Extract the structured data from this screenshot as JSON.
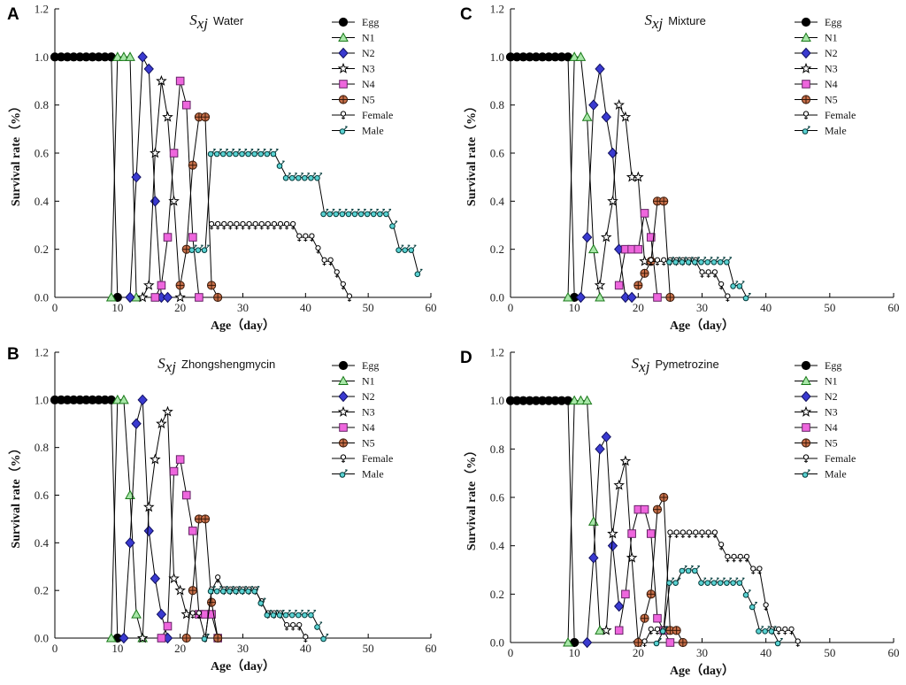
{
  "series_styles": [
    {
      "name": "Egg",
      "marker": "circle",
      "fill": "#000000",
      "stroke": "#000000"
    },
    {
      "name": "N1",
      "marker": "triangle",
      "fill": "#a8e6a8",
      "stroke": "#1a7a1a"
    },
    {
      "name": "N2",
      "marker": "diamond",
      "fill": "#3a3ad0",
      "stroke": "#101060"
    },
    {
      "name": "N3",
      "marker": "star",
      "fill": "#ffffff",
      "stroke": "#000000"
    },
    {
      "name": "N4",
      "marker": "square",
      "fill": "#ee66dd",
      "stroke": "#662266"
    },
    {
      "name": "N5",
      "marker": "crossed-circle",
      "fill": "#c8704a",
      "stroke": "#3a1a0a"
    },
    {
      "name": "Female",
      "marker": "female",
      "fill": "#ffffff",
      "stroke": "#000000"
    },
    {
      "name": "Male",
      "marker": "male",
      "fill": "#5ad2d2",
      "stroke": "#003a3a"
    }
  ],
  "chart_data": [
    {
      "panel_label": "A",
      "type": "line",
      "title_symbol": "S",
      "title_subscript": "xj",
      "title_rest": "Water",
      "xlabel": "Age（day）",
      "ylabel": "Survival rate（%）",
      "xlim": [
        0,
        60
      ],
      "ylim": [
        0,
        1.2
      ],
      "xticks": [
        "0",
        "10",
        "20",
        "30",
        "40",
        "50",
        "60"
      ],
      "yticks": [
        "0.0",
        "0.2",
        "0.4",
        "0.6",
        "0.8",
        "1.0",
        "1.2"
      ],
      "legend": [
        "Egg",
        "N1",
        "N2",
        "N3",
        "N4",
        "N5",
        "Female",
        "Male"
      ],
      "series": [
        {
          "name": "Egg",
          "x": [
            0,
            1,
            2,
            3,
            4,
            5,
            6,
            7,
            8,
            9,
            10
          ],
          "y": [
            1,
            1,
            1,
            1,
            1,
            1,
            1,
            1,
            1,
            1,
            0
          ]
        },
        {
          "name": "N1",
          "x": [
            9,
            10,
            11,
            12,
            13
          ],
          "y": [
            0,
            1,
            1,
            1,
            0
          ]
        },
        {
          "name": "N2",
          "x": [
            12,
            13,
            14,
            15,
            16,
            17,
            18
          ],
          "y": [
            0,
            0.5,
            1,
            0.95,
            0.4,
            0,
            0
          ]
        },
        {
          "name": "N3",
          "x": [
            14,
            15,
            16,
            17,
            18,
            19,
            20
          ],
          "y": [
            0,
            0.05,
            0.6,
            0.9,
            0.75,
            0.4,
            0
          ]
        },
        {
          "name": "N4",
          "x": [
            16,
            17,
            18,
            19,
            20,
            21,
            22,
            23
          ],
          "y": [
            0,
            0.05,
            0.25,
            0.6,
            0.9,
            0.8,
            0.25,
            0
          ]
        },
        {
          "name": "N5",
          "x": [
            20,
            21,
            22,
            23,
            24,
            25,
            26
          ],
          "y": [
            0.05,
            0.2,
            0.55,
            0.75,
            0.75,
            0.05,
            0
          ]
        },
        {
          "name": "Female",
          "x": [
            25,
            26,
            27,
            28,
            29,
            30,
            31,
            32,
            33,
            34,
            35,
            36,
            37,
            38,
            39,
            40,
            41,
            42,
            43,
            44,
            45,
            46,
            47
          ],
          "y": [
            0.3,
            0.3,
            0.3,
            0.3,
            0.3,
            0.3,
            0.3,
            0.3,
            0.3,
            0.3,
            0.3,
            0.3,
            0.3,
            0.3,
            0.25,
            0.25,
            0.25,
            0.2,
            0.15,
            0.15,
            0.1,
            0.05,
            0
          ]
        },
        {
          "name": "Male",
          "x": [
            22,
            23,
            24,
            25,
            26,
            27,
            28,
            29,
            30,
            31,
            32,
            33,
            34,
            35,
            36,
            37,
            38,
            39,
            40,
            41,
            42,
            43,
            44,
            45,
            46,
            47,
            48,
            49,
            50,
            51,
            52,
            53,
            54,
            55,
            56,
            57,
            58
          ],
          "y": [
            0.2,
            0.2,
            0.2,
            0.6,
            0.6,
            0.6,
            0.6,
            0.6,
            0.6,
            0.6,
            0.6,
            0.6,
            0.6,
            0.6,
            0.55,
            0.5,
            0.5,
            0.5,
            0.5,
            0.5,
            0.5,
            0.35,
            0.35,
            0.35,
            0.35,
            0.35,
            0.35,
            0.35,
            0.35,
            0.35,
            0.35,
            0.35,
            0.3,
            0.2,
            0.2,
            0.2,
            0.1
          ]
        }
      ]
    },
    {
      "panel_label": "C",
      "type": "line",
      "title_symbol": "S",
      "title_subscript": "xj",
      "title_rest": "Mixture",
      "xlabel": "Age（day）",
      "ylabel": "Survival rate（%）",
      "xlim": [
        0,
        60
      ],
      "ylim": [
        0,
        1.2
      ],
      "xticks": [
        "0",
        "10",
        "20",
        "30",
        "40",
        "50",
        "60"
      ],
      "yticks": [
        "0.0",
        "0.2",
        "0.4",
        "0.6",
        "0.8",
        "1.0",
        "1.2"
      ],
      "legend": [
        "Egg",
        "N1",
        "N2",
        "N3",
        "N4",
        "N5",
        "Female",
        "Male"
      ],
      "series": [
        {
          "name": "Egg",
          "x": [
            0,
            1,
            2,
            3,
            4,
            5,
            6,
            7,
            8,
            9,
            10
          ],
          "y": [
            1,
            1,
            1,
            1,
            1,
            1,
            1,
            1,
            1,
            1,
            0
          ]
        },
        {
          "name": "N1",
          "x": [
            9,
            10,
            11,
            12,
            13,
            14
          ],
          "y": [
            0,
            1,
            1,
            0.75,
            0.2,
            0
          ]
        },
        {
          "name": "N2",
          "x": [
            11,
            12,
            13,
            14,
            15,
            16,
            17,
            18,
            19
          ],
          "y": [
            0,
            0.25,
            0.8,
            0.95,
            0.75,
            0.6,
            0.2,
            0,
            0
          ]
        },
        {
          "name": "N3",
          "x": [
            14,
            15,
            16,
            17,
            18,
            19,
            20,
            21
          ],
          "y": [
            0.05,
            0.25,
            0.4,
            0.8,
            0.75,
            0.5,
            0.5,
            0.15
          ]
        },
        {
          "name": "N4",
          "x": [
            17,
            18,
            19,
            20,
            21,
            22,
            23
          ],
          "y": [
            0.05,
            0.2,
            0.2,
            0.2,
            0.35,
            0.25,
            0
          ]
        },
        {
          "name": "N5",
          "x": [
            20,
            21,
            22,
            23,
            24,
            25
          ],
          "y": [
            0.05,
            0.1,
            0.15,
            0.4,
            0.4,
            0
          ]
        },
        {
          "name": "Female",
          "x": [
            22,
            23,
            24,
            25,
            26,
            27,
            28,
            29,
            30,
            31,
            32,
            33,
            34
          ],
          "y": [
            0.15,
            0.15,
            0.15,
            0.15,
            0.15,
            0.15,
            0.15,
            0.15,
            0.1,
            0.1,
            0.1,
            0.05,
            0
          ]
        },
        {
          "name": "Male",
          "x": [
            25,
            26,
            27,
            28,
            29,
            30,
            31,
            32,
            33,
            34,
            35,
            36,
            37
          ],
          "y": [
            0.15,
            0.15,
            0.15,
            0.15,
            0.15,
            0.15,
            0.15,
            0.15,
            0.15,
            0.15,
            0.05,
            0.05,
            0
          ]
        }
      ]
    },
    {
      "panel_label": "B",
      "type": "line",
      "title_symbol": "S",
      "title_subscript": "xj",
      "title_rest": "Zhongshengmycin",
      "xlabel": "Age（day）",
      "ylabel": "Survival rate（%）",
      "xlim": [
        0,
        60
      ],
      "ylim": [
        0,
        1.2
      ],
      "xticks": [
        "0",
        "10",
        "20",
        "30",
        "40",
        "50",
        "60"
      ],
      "yticks": [
        "0.0",
        "0.2",
        "0.4",
        "0.6",
        "0.8",
        "1.0",
        "1.2"
      ],
      "legend": [
        "Egg",
        "N1",
        "N2",
        "N3",
        "N4",
        "N5",
        "Female",
        "Male"
      ],
      "series": [
        {
          "name": "Egg",
          "x": [
            0,
            1,
            2,
            3,
            4,
            5,
            6,
            7,
            8,
            9,
            10
          ],
          "y": [
            1,
            1,
            1,
            1,
            1,
            1,
            1,
            1,
            1,
            1,
            0
          ]
        },
        {
          "name": "N1",
          "x": [
            9,
            10,
            11,
            12,
            13,
            14
          ],
          "y": [
            0,
            1,
            1,
            0.6,
            0.1,
            0
          ]
        },
        {
          "name": "N2",
          "x": [
            11,
            12,
            13,
            14,
            15,
            16,
            17,
            18
          ],
          "y": [
            0,
            0.4,
            0.9,
            1,
            0.45,
            0.25,
            0.1,
            0
          ]
        },
        {
          "name": "N3",
          "x": [
            14,
            15,
            16,
            17,
            18,
            19,
            20,
            21
          ],
          "y": [
            0,
            0.55,
            0.75,
            0.9,
            0.95,
            0.25,
            0.2,
            0.1
          ]
        },
        {
          "name": "N4",
          "x": [
            17,
            18,
            19,
            20,
            21,
            22,
            23,
            24,
            25,
            26
          ],
          "y": [
            0,
            0.05,
            0.7,
            0.75,
            0.6,
            0.45,
            0.1,
            0.1,
            0.1,
            0
          ]
        },
        {
          "name": "N5",
          "x": [
            21,
            22,
            23,
            24,
            25,
            26
          ],
          "y": [
            0,
            0.2,
            0.5,
            0.5,
            0.15,
            0
          ]
        },
        {
          "name": "Female",
          "x": [
            22,
            23,
            24,
            25,
            26,
            27,
            28,
            29,
            30,
            31,
            32,
            33,
            34,
            35,
            36,
            37,
            38,
            39,
            40
          ],
          "y": [
            0.1,
            0.1,
            0,
            0.2,
            0.25,
            0.2,
            0.2,
            0.2,
            0.2,
            0.2,
            0.2,
            0.15,
            0.1,
            0.1,
            0.1,
            0.05,
            0.05,
            0.05,
            0
          ]
        },
        {
          "name": "Male",
          "x": [
            24,
            25,
            26,
            27,
            28,
            29,
            30,
            31,
            32,
            33,
            34,
            35,
            36,
            37,
            38,
            39,
            40,
            41,
            42,
            43
          ],
          "y": [
            0,
            0.2,
            0.2,
            0.2,
            0.2,
            0.2,
            0.2,
            0.2,
            0.2,
            0.15,
            0.1,
            0.1,
            0.1,
            0.1,
            0.1,
            0.1,
            0.1,
            0.1,
            0.05,
            0
          ]
        }
      ]
    },
    {
      "panel_label": "D",
      "type": "line",
      "title_symbol": "S",
      "title_subscript": "xj",
      "title_rest": "Pymetrozine",
      "xlabel": "Age（day）",
      "ylabel": "Survival rate（%）",
      "xlim": [
        0,
        60
      ],
      "ylim": [
        0,
        1.2
      ],
      "xticks": [
        "0",
        "10",
        "20",
        "30",
        "40",
        "50",
        "60"
      ],
      "yticks": [
        "0.0",
        "0.2",
        "0.4",
        "0.6",
        "0.8",
        "1.0",
        "1.2"
      ],
      "legend": [
        "Egg",
        "N1",
        "N2",
        "N3",
        "N4",
        "N5",
        "Female",
        "Male"
      ],
      "series": [
        {
          "name": "Egg",
          "x": [
            0,
            1,
            2,
            3,
            4,
            5,
            6,
            7,
            8,
            9,
            10
          ],
          "y": [
            1,
            1,
            1,
            1,
            1,
            1,
            1,
            1,
            1,
            1,
            0
          ]
        },
        {
          "name": "N1",
          "x": [
            9,
            10,
            11,
            12,
            13,
            14
          ],
          "y": [
            0,
            1,
            1,
            1,
            0.5,
            0.05
          ]
        },
        {
          "name": "N2",
          "x": [
            12,
            13,
            14,
            15,
            16,
            17
          ],
          "y": [
            0,
            0.35,
            0.8,
            0.85,
            0.4,
            0.15
          ]
        },
        {
          "name": "N3",
          "x": [
            15,
            16,
            17,
            18,
            19,
            20
          ],
          "y": [
            0.05,
            0.45,
            0.65,
            0.75,
            0.35,
            0
          ]
        },
        {
          "name": "N4",
          "x": [
            17,
            18,
            19,
            20,
            21,
            22,
            23,
            24,
            25
          ],
          "y": [
            0.05,
            0.2,
            0.45,
            0.55,
            0.55,
            0.45,
            0.1,
            0.05,
            0
          ]
        },
        {
          "name": "N5",
          "x": [
            20,
            21,
            22,
            23,
            24,
            25,
            26,
            27
          ],
          "y": [
            0,
            0.1,
            0.2,
            0.55,
            0.6,
            0.05,
            0.05,
            0
          ]
        },
        {
          "name": "Female",
          "x": [
            21,
            22,
            23,
            24,
            25,
            26,
            27,
            28,
            29,
            30,
            31,
            32,
            33,
            34,
            35,
            36,
            37,
            38,
            39,
            40,
            41,
            42,
            43,
            44,
            45
          ],
          "y": [
            0,
            0.05,
            0.05,
            0.05,
            0.45,
            0.45,
            0.45,
            0.45,
            0.45,
            0.45,
            0.45,
            0.45,
            0.4,
            0.35,
            0.35,
            0.35,
            0.35,
            0.3,
            0.3,
            0.15,
            0.05,
            0.05,
            0.05,
            0.05,
            0
          ]
        },
        {
          "name": "Male",
          "x": [
            23,
            24,
            25,
            26,
            27,
            28,
            29,
            30,
            31,
            32,
            33,
            34,
            35,
            36,
            37,
            38,
            39,
            40,
            41,
            42
          ],
          "y": [
            0,
            0.05,
            0.25,
            0.25,
            0.3,
            0.3,
            0.3,
            0.25,
            0.25,
            0.25,
            0.25,
            0.25,
            0.25,
            0.25,
            0.2,
            0.15,
            0.05,
            0.05,
            0.05,
            0
          ]
        }
      ]
    }
  ]
}
